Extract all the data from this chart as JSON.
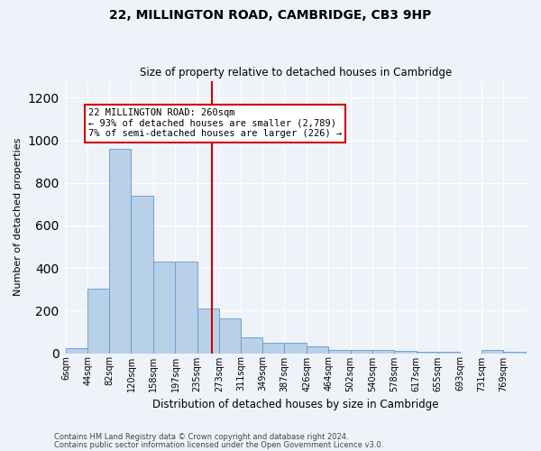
{
  "title1": "22, MILLINGTON ROAD, CAMBRIDGE, CB3 9HP",
  "title2": "Size of property relative to detached houses in Cambridge",
  "xlabel": "Distribution of detached houses by size in Cambridge",
  "ylabel": "Number of detached properties",
  "bar_labels": [
    "6sqm",
    "44sqm",
    "82sqm",
    "120sqm",
    "158sqm",
    "197sqm",
    "235sqm",
    "273sqm",
    "311sqm",
    "349sqm",
    "387sqm",
    "426sqm",
    "464sqm",
    "502sqm",
    "540sqm",
    "578sqm",
    "617sqm",
    "655sqm",
    "693sqm",
    "731sqm",
    "769sqm"
  ],
  "bar_values": [
    25,
    305,
    960,
    740,
    430,
    430,
    210,
    165,
    75,
    47,
    47,
    30,
    15,
    15,
    15,
    10,
    5,
    5,
    0,
    15,
    5
  ],
  "bin_edges": [
    6,
    44,
    82,
    120,
    158,
    197,
    235,
    273,
    311,
    349,
    387,
    426,
    464,
    502,
    540,
    578,
    617,
    655,
    693,
    731,
    769
  ],
  "bar_color": "#b8d0e8",
  "bar_edge_color": "#6699cc",
  "vline_x": 260,
  "vline_color": "#cc0000",
  "annotation_text": "22 MILLINGTON ROAD: 260sqm\n← 93% of detached houses are smaller (2,789)\n7% of semi-detached houses are larger (226) →",
  "annotation_box_facecolor": "#ffffff",
  "annotation_box_edgecolor": "#cc0000",
  "ylim": [
    0,
    1280
  ],
  "yticks": [
    0,
    200,
    400,
    600,
    800,
    1000,
    1200
  ],
  "footer1": "Contains HM Land Registry data © Crown copyright and database right 2024.",
  "footer2": "Contains public sector information licensed under the Open Government Licence v3.0.",
  "bg_color": "#eef2f9",
  "grid_color": "#ffffff",
  "title1_fontsize": 10,
  "title2_fontsize": 8.5,
  "ylabel_fontsize": 8,
  "xlabel_fontsize": 8.5,
  "tick_fontsize": 7,
  "footer_fontsize": 6,
  "annot_fontsize": 7.5
}
